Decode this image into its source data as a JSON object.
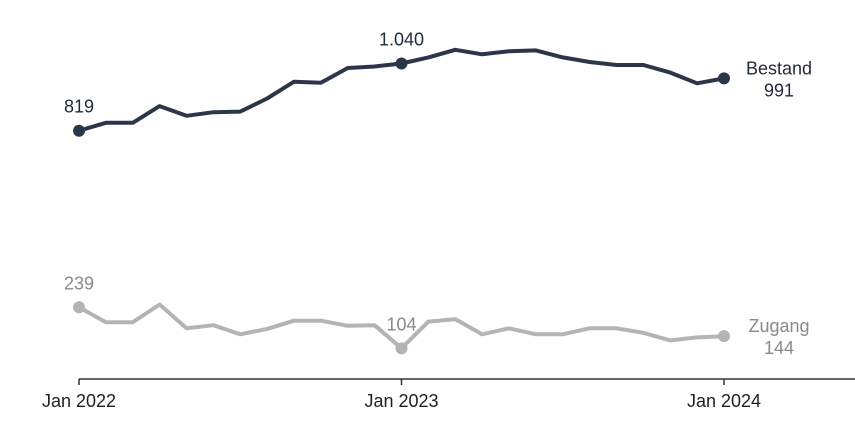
{
  "chart_data": {
    "type": "line",
    "x": [
      "2022-01",
      "2022-02",
      "2022-03",
      "2022-04",
      "2022-05",
      "2022-06",
      "2022-07",
      "2022-08",
      "2022-09",
      "2022-10",
      "2022-11",
      "2022-12",
      "2023-01",
      "2023-02",
      "2023-03",
      "2023-04",
      "2023-05",
      "2023-06",
      "2023-07",
      "2023-08",
      "2023-09",
      "2023-10",
      "2023-11",
      "2023-12",
      "2024-01"
    ],
    "xticks": [
      {
        "x": "2022-01",
        "label": "Jan 2022"
      },
      {
        "x": "2023-01",
        "label": "Jan 2023"
      },
      {
        "x": "2024-01",
        "label": "Jan 2024"
      }
    ],
    "xlim": [
      "2022-01",
      "2024-06"
    ],
    "ylim": [
      0,
      1150
    ],
    "grid": false,
    "series": [
      {
        "name": "Bestand",
        "color": "#2b3648",
        "values": [
          819,
          845,
          845,
          900,
          868,
          880,
          882,
          925,
          980,
          977,
          1025,
          1030,
          1040,
          1060,
          1085,
          1070,
          1080,
          1083,
          1060,
          1045,
          1035,
          1035,
          1010,
          975,
          991
        ],
        "labels": [
          {
            "index": 0,
            "text": "819"
          },
          {
            "index": 12,
            "text": "1.040"
          }
        ],
        "end_label_name": "Bestand",
        "end_label_value": "991"
      },
      {
        "name": "Zugang",
        "color": "#b4b4b4",
        "values": [
          239,
          190,
          190,
          248,
          170,
          180,
          150,
          168,
          195,
          195,
          178,
          180,
          104,
          192,
          200,
          150,
          170,
          150,
          150,
          170,
          170,
          155,
          130,
          140,
          144
        ],
        "labels": [
          {
            "index": 0,
            "text": "239"
          },
          {
            "index": 12,
            "text": "104"
          }
        ],
        "end_label_name": "Zugang",
        "end_label_value": "144"
      }
    ]
  }
}
